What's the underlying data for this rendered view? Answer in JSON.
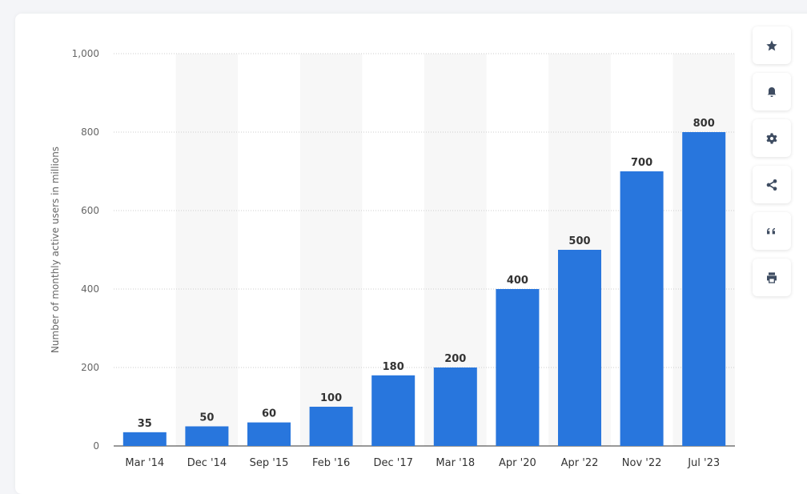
{
  "chart_data": {
    "type": "bar",
    "categories": [
      "Mar '14",
      "Dec '14",
      "Sep '15",
      "Feb '16",
      "Dec '17",
      "Mar '18",
      "Apr '20",
      "Apr '22",
      "Nov '22",
      "Jul '23"
    ],
    "values": [
      35,
      50,
      60,
      100,
      180,
      200,
      400,
      500,
      700,
      800
    ],
    "ylabel": "Number of monthly active users in millions",
    "xlabel": "",
    "ylim": [
      0,
      1000
    ],
    "yticks": [
      0,
      200,
      400,
      600,
      800,
      1000
    ],
    "ytick_labels": [
      "0",
      "200",
      "400",
      "600",
      "800",
      "1,000"
    ],
    "grid": true,
    "bar_color": "#2876dd"
  },
  "toolbar": [
    "star-icon",
    "bell-icon",
    "gear-icon",
    "share-icon",
    "quote-icon",
    "print-icon"
  ]
}
